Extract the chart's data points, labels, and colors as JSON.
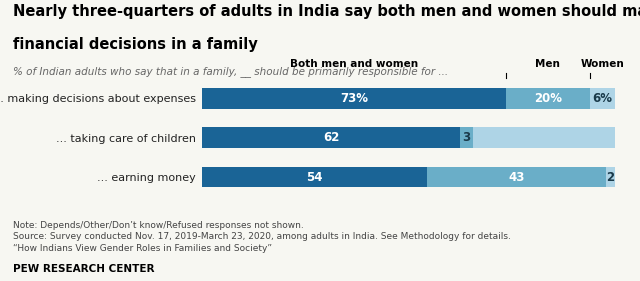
{
  "title_line1": "Nearly three-quarters of adults in India say both men and women should make",
  "title_line2": "financial decisions in a family",
  "subtitle": "% of Indian adults who say that in a family, __ should be primarily responsible for ...",
  "categories": [
    "... making decisions about expenses",
    "... taking care of children",
    "... earning money"
  ],
  "both": [
    73,
    62,
    54
  ],
  "men": [
    20,
    3,
    43
  ],
  "women": [
    6,
    34,
    2
  ],
  "both_color": "#1a6496",
  "men_color": "#6aaec8",
  "women_color": "#aed4e6",
  "both_label": "Both men and women",
  "men_label": "Men",
  "women_label": "Women",
  "bar_labels_both": [
    "73%",
    "62",
    "54"
  ],
  "bar_labels_men": [
    "20%",
    "3",
    "43"
  ],
  "bar_labels_women": [
    "6%",
    "",
    "2"
  ],
  "label_colors_both": [
    "white",
    "white",
    "white"
  ],
  "label_colors_men": [
    "white",
    "#1a3a4a",
    "white"
  ],
  "label_colors_women": [
    "#1a3a4a",
    "",
    "#1a3a4a"
  ],
  "note": "Note: Depends/Other/Don’t know/Refused responses not shown.\nSource: Survey conducted Nov. 17, 2019-March 23, 2020, among adults in India. See Methodology for details.\n“How Indians View Gender Roles in Families and Society”",
  "branding": "PEW RESEARCH CENTER",
  "background_color": "#f7f7f2",
  "title_fontsize": 10.5,
  "subtitle_fontsize": 7.5,
  "note_fontsize": 6.5,
  "bar_label_fontsize": 8.5,
  "cat_label_fontsize": 8
}
